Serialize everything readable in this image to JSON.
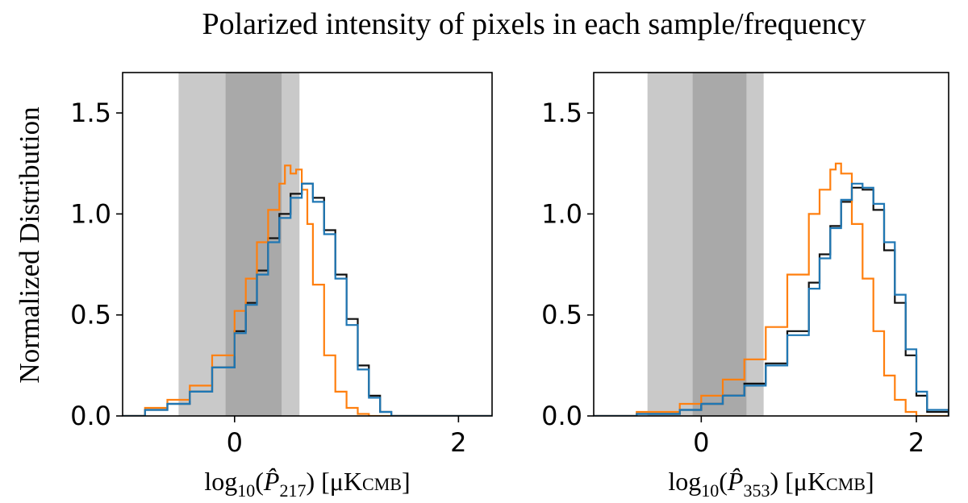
{
  "figure": {
    "title": "Polarized intensity of pixels in each sample/frequency",
    "ylabel": "Normalized Distribution"
  },
  "style": {
    "band_light": "#c9c9c9",
    "band_dark": "#a9a9a9",
    "series_colors": [
      "#111111",
      "#ff7f0e",
      "#1f77b4"
    ]
  },
  "chart_data": [
    {
      "type": "line",
      "subtype": "step-histogram",
      "title": "",
      "xlabel_parts": {
        "prefix": "log",
        "base": "10",
        "var": "P̂",
        "sub": "217",
        "unit_open": ") [μK",
        "unit_sub": "CMB",
        "unit_close": "]"
      },
      "ylabel": "Normalized Distribution",
      "xlim": [
        -1.0,
        2.3
      ],
      "ylim": [
        0,
        1.7
      ],
      "xticks": [
        0,
        2
      ],
      "xtick_labels": [
        "0",
        "2"
      ],
      "yticks": [
        0.0,
        0.5,
        1.0,
        1.5
      ],
      "ytick_labels": [
        "0.0",
        "0.5",
        "1.0",
        "1.5"
      ],
      "shaded_bands": [
        {
          "name": "outer-range",
          "x0": -0.5,
          "x1": 0.58
        },
        {
          "name": "inner-range",
          "x0": -0.08,
          "x1": 0.42
        }
      ],
      "series": [
        {
          "name": "black",
          "x": [
            -1.0,
            -0.8,
            -0.6,
            -0.4,
            -0.2,
            0.0,
            0.1,
            0.2,
            0.3,
            0.4,
            0.5,
            0.6,
            0.7,
            0.8,
            0.9,
            1.0,
            1.1,
            1.2,
            1.3,
            1.4,
            2.3
          ],
          "values": [
            0.0,
            0.03,
            0.06,
            0.12,
            0.24,
            0.42,
            0.56,
            0.72,
            0.88,
            1.0,
            1.1,
            1.15,
            1.08,
            0.92,
            0.7,
            0.48,
            0.25,
            0.1,
            0.02,
            0.0,
            0.0
          ]
        },
        {
          "name": "orange",
          "x": [
            -1.0,
            -0.8,
            -0.6,
            -0.4,
            -0.2,
            0.0,
            0.1,
            0.2,
            0.3,
            0.4,
            0.45,
            0.5,
            0.55,
            0.6,
            0.65,
            0.7,
            0.8,
            0.9,
            1.0,
            1.1,
            1.2,
            2.3
          ],
          "values": [
            0.0,
            0.04,
            0.08,
            0.15,
            0.3,
            0.52,
            0.68,
            0.86,
            1.02,
            1.15,
            1.24,
            1.2,
            1.22,
            1.12,
            0.95,
            0.65,
            0.3,
            0.12,
            0.04,
            0.01,
            0.0,
            0.0
          ]
        },
        {
          "name": "blue",
          "x": [
            -1.0,
            -0.8,
            -0.6,
            -0.4,
            -0.2,
            0.0,
            0.1,
            0.2,
            0.3,
            0.4,
            0.5,
            0.6,
            0.7,
            0.8,
            0.9,
            1.0,
            1.1,
            1.2,
            1.3,
            1.4,
            2.3
          ],
          "values": [
            0.0,
            0.03,
            0.06,
            0.12,
            0.24,
            0.41,
            0.55,
            0.7,
            0.86,
            0.98,
            1.08,
            1.15,
            1.06,
            0.9,
            0.68,
            0.45,
            0.23,
            0.09,
            0.02,
            0.0,
            0.0
          ]
        }
      ]
    },
    {
      "type": "line",
      "subtype": "step-histogram",
      "title": "",
      "xlabel_parts": {
        "prefix": "log",
        "base": "10",
        "var": "P̂",
        "sub": "353",
        "unit_open": ") [μK",
        "unit_sub": "CMB",
        "unit_close": "]"
      },
      "ylabel": "Normalized Distribution",
      "xlim": [
        -1.0,
        2.3
      ],
      "ylim": [
        0,
        1.7
      ],
      "xticks": [
        0,
        2
      ],
      "xtick_labels": [
        "0",
        "2"
      ],
      "yticks": [
        0.0,
        0.5,
        1.0,
        1.5
      ],
      "ytick_labels": [
        "0.0",
        "0.5",
        "1.0",
        "1.5"
      ],
      "shaded_bands": [
        {
          "name": "outer-range",
          "x0": -0.5,
          "x1": 0.58
        },
        {
          "name": "inner-range",
          "x0": -0.08,
          "x1": 0.42
        }
      ],
      "series": [
        {
          "name": "black",
          "x": [
            -1.0,
            -0.6,
            -0.2,
            0.0,
            0.2,
            0.4,
            0.6,
            0.8,
            1.0,
            1.1,
            1.2,
            1.3,
            1.4,
            1.5,
            1.6,
            1.7,
            1.8,
            1.9,
            2.0,
            2.1,
            2.3
          ],
          "values": [
            0.0,
            0.01,
            0.03,
            0.06,
            0.1,
            0.16,
            0.26,
            0.42,
            0.66,
            0.8,
            0.94,
            1.06,
            1.13,
            1.12,
            1.02,
            0.82,
            0.56,
            0.3,
            0.1,
            0.02,
            0.0
          ]
        },
        {
          "name": "orange",
          "x": [
            -1.0,
            -0.6,
            -0.2,
            0.0,
            0.2,
            0.4,
            0.6,
            0.8,
            1.0,
            1.1,
            1.2,
            1.25,
            1.3,
            1.4,
            1.5,
            1.6,
            1.7,
            1.8,
            1.9,
            2.0,
            2.3
          ],
          "values": [
            0.0,
            0.02,
            0.06,
            0.1,
            0.18,
            0.28,
            0.44,
            0.7,
            1.0,
            1.12,
            1.22,
            1.25,
            1.2,
            0.95,
            0.68,
            0.42,
            0.2,
            0.08,
            0.02,
            0.0,
            0.0
          ]
        },
        {
          "name": "blue",
          "x": [
            -1.0,
            -0.6,
            -0.2,
            0.0,
            0.2,
            0.4,
            0.6,
            0.8,
            1.0,
            1.1,
            1.2,
            1.3,
            1.4,
            1.5,
            1.6,
            1.7,
            1.8,
            1.9,
            2.0,
            2.1,
            2.3
          ],
          "values": [
            0.0,
            0.01,
            0.03,
            0.06,
            0.1,
            0.15,
            0.25,
            0.4,
            0.63,
            0.78,
            0.93,
            1.07,
            1.15,
            1.13,
            1.05,
            0.86,
            0.6,
            0.33,
            0.12,
            0.03,
            0.0
          ]
        }
      ]
    }
  ]
}
